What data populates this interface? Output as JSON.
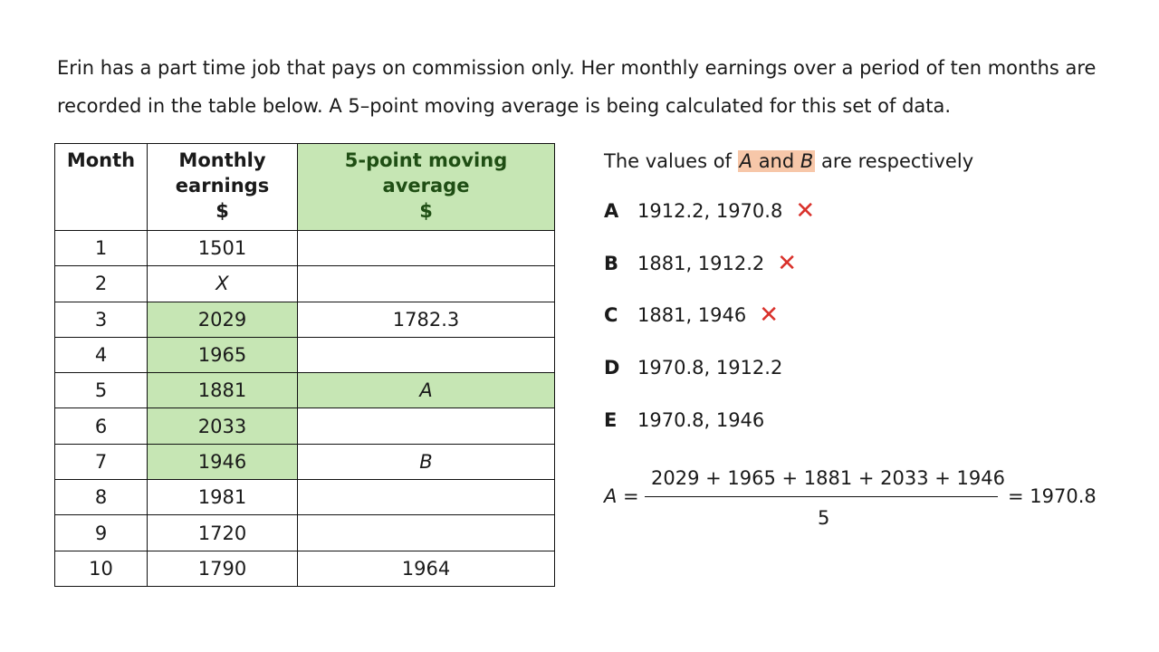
{
  "intro": "Erin has a part time job that pays on commission only. Her monthly earnings over a period of ten months are recorded in the table below. A 5–point moving average is being calculated for this set of data.",
  "table": {
    "headers": {
      "month": "Month",
      "earnings_line1": "Monthly",
      "earnings_line2": "earnings",
      "earnings_unit": "$",
      "ma_line1": "5-point moving",
      "ma_line2": "average",
      "ma_unit": "$"
    },
    "rows": [
      {
        "month": "1",
        "earnings": "1501",
        "ma": ""
      },
      {
        "month": "2",
        "earnings": "X",
        "ma": ""
      },
      {
        "month": "3",
        "earnings": "2029",
        "ma": "1782.3"
      },
      {
        "month": "4",
        "earnings": "1965",
        "ma": ""
      },
      {
        "month": "5",
        "earnings": "1881",
        "ma": "A"
      },
      {
        "month": "6",
        "earnings": "2033",
        "ma": ""
      },
      {
        "month": "7",
        "earnings": "1946",
        "ma": "B"
      },
      {
        "month": "8",
        "earnings": "1981",
        "ma": ""
      },
      {
        "month": "9",
        "earnings": "1720",
        "ma": ""
      },
      {
        "month": "10",
        "earnings": "1790",
        "ma": "1964"
      }
    ]
  },
  "question": {
    "before": "The values of ",
    "var_a": "A",
    "and": " and ",
    "var_b": "B",
    "after": " are respectively"
  },
  "options": [
    {
      "letter": "A",
      "text": "1912.2, 1970.8",
      "wrong": true
    },
    {
      "letter": "B",
      "text": "1881, 1912.2",
      "wrong": true
    },
    {
      "letter": "C",
      "text": "1881, 1946",
      "wrong": true
    },
    {
      "letter": "D",
      "text": "1970.8, 1912.2",
      "wrong": false
    },
    {
      "letter": "E",
      "text": "1970.8, 1946",
      "wrong": false
    }
  ],
  "cross_symbol": "✕",
  "formula": {
    "lhs_var": "A",
    "lhs_eq": " =",
    "numerator": "2029 + 1965 + 1881 + 2033 + 1946",
    "denominator": "5",
    "result": "= 1970.8"
  },
  "colors": {
    "highlight_green": "#c6e6b4",
    "highlight_orange": "#f7c7a9",
    "cross_red": "#d9312b"
  }
}
